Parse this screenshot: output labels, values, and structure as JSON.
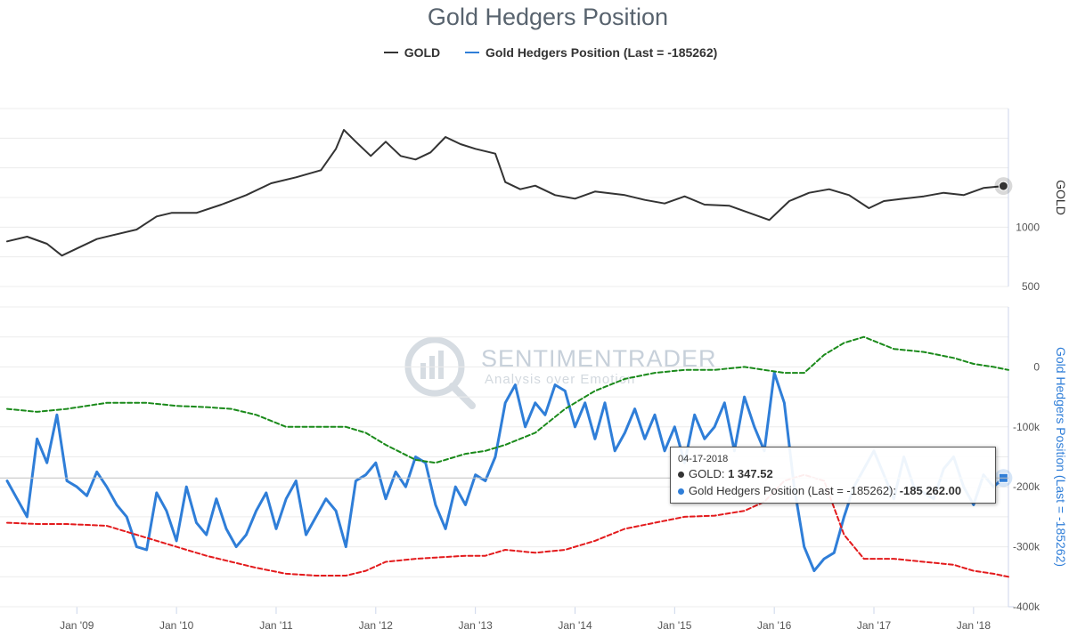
{
  "chart_data": {
    "type": "line",
    "title": "Gold Hedgers Position",
    "legend": {
      "placement": "top-center",
      "items": [
        "GOLD",
        "Gold Hedgers Position (Last = -185262)"
      ]
    },
    "x_ticks": [
      "Jan '09",
      "Jan '10",
      "Jan '11",
      "Jan '12",
      "Jan '13",
      "Jan '14",
      "Jan '15",
      "Jan '16",
      "Jan '17",
      "Jan '18"
    ],
    "x_range": [
      2008.3,
      2018.35
    ],
    "panels": [
      {
        "name": "gold",
        "ylabel": "GOLD",
        "ylim": [
          500,
          2000
        ],
        "y_ticks": [
          {
            "value": 500,
            "label": "500"
          },
          {
            "value": 1000,
            "label": "1000"
          }
        ],
        "grid": true,
        "series": [
          {
            "name": "GOLD",
            "color": "#333333",
            "x": [
              2008.3,
              2008.5,
              2008.7,
              2008.85,
              2009.0,
              2009.2,
              2009.4,
              2009.6,
              2009.8,
              2009.95,
              2010.2,
              2010.45,
              2010.7,
              2010.95,
              2011.2,
              2011.45,
              2011.6,
              2011.68,
              2011.8,
              2011.95,
              2012.1,
              2012.25,
              2012.4,
              2012.55,
              2012.7,
              2012.85,
              2013.0,
              2013.2,
              2013.3,
              2013.45,
              2013.6,
              2013.8,
              2014.0,
              2014.2,
              2014.5,
              2014.7,
              2014.9,
              2015.1,
              2015.3,
              2015.55,
              2015.75,
              2015.95,
              2016.15,
              2016.35,
              2016.55,
              2016.75,
              2016.95,
              2017.1,
              2017.3,
              2017.5,
              2017.7,
              2017.9,
              2018.1,
              2018.3
            ],
            "values": [
              880,
              920,
              860,
              760,
              820,
              900,
              940,
              980,
              1090,
              1120,
              1120,
              1190,
              1270,
              1370,
              1420,
              1480,
              1660,
              1820,
              1720,
              1600,
              1720,
              1600,
              1570,
              1630,
              1760,
              1700,
              1660,
              1620,
              1380,
              1320,
              1350,
              1270,
              1240,
              1300,
              1270,
              1230,
              1200,
              1260,
              1190,
              1180,
              1120,
              1060,
              1220,
              1290,
              1320,
              1270,
              1160,
              1220,
              1240,
              1260,
              1290,
              1270,
              1330,
              1347
            ]
          }
        ]
      },
      {
        "name": "hedgers",
        "ylabel": "Gold Hedgers Position (Last = -185262)",
        "ylim": [
          -400000,
          100000
        ],
        "y_ticks": [
          {
            "value": -400000,
            "label": "-400k"
          },
          {
            "value": -300000,
            "label": "-300k"
          },
          {
            "value": -200000,
            "label": "-200k"
          },
          {
            "value": -100000,
            "label": "-100k"
          },
          {
            "value": 0,
            "label": "0"
          }
        ],
        "grid": true,
        "series": [
          {
            "name": "Gold Hedgers Position (Last = -185262)",
            "color": "#2f7ed8",
            "x": [
              2008.3,
              2008.4,
              2008.5,
              2008.6,
              2008.7,
              2008.8,
              2008.9,
              2009.0,
              2009.1,
              2009.2,
              2009.3,
              2009.4,
              2009.5,
              2009.6,
              2009.7,
              2009.8,
              2009.9,
              2010.0,
              2010.1,
              2010.2,
              2010.3,
              2010.4,
              2010.5,
              2010.6,
              2010.7,
              2010.8,
              2010.9,
              2011.0,
              2011.1,
              2011.2,
              2011.3,
              2011.4,
              2011.5,
              2011.6,
              2011.7,
              2011.8,
              2011.9,
              2012.0,
              2012.1,
              2012.2,
              2012.3,
              2012.4,
              2012.5,
              2012.6,
              2012.7,
              2012.8,
              2012.9,
              2013.0,
              2013.1,
              2013.2,
              2013.3,
              2013.4,
              2013.5,
              2013.6,
              2013.7,
              2013.8,
              2013.9,
              2014.0,
              2014.1,
              2014.2,
              2014.3,
              2014.4,
              2014.5,
              2014.6,
              2014.7,
              2014.8,
              2014.9,
              2015.0,
              2015.1,
              2015.2,
              2015.3,
              2015.4,
              2015.5,
              2015.6,
              2015.7,
              2015.8,
              2015.9,
              2016.0,
              2016.1,
              2016.2,
              2016.3,
              2016.4,
              2016.5,
              2016.6,
              2016.7,
              2016.8,
              2016.9,
              2017.0,
              2017.1,
              2017.2,
              2017.3,
              2017.4,
              2017.5,
              2017.6,
              2017.7,
              2017.8,
              2017.9,
              2018.0,
              2018.1,
              2018.2,
              2018.3
            ],
            "values": [
              -190000,
              -220000,
              -250000,
              -120000,
              -160000,
              -80000,
              -190000,
              -200000,
              -215000,
              -175000,
              -200000,
              -230000,
              -250000,
              -300000,
              -305000,
              -210000,
              -240000,
              -290000,
              -200000,
              -260000,
              -280000,
              -220000,
              -270000,
              -300000,
              -280000,
              -240000,
              -210000,
              -270000,
              -220000,
              -190000,
              -280000,
              -250000,
              -220000,
              -240000,
              -300000,
              -190000,
              -180000,
              -160000,
              -220000,
              -175000,
              -200000,
              -150000,
              -160000,
              -230000,
              -270000,
              -200000,
              -230000,
              -180000,
              -190000,
              -150000,
              -60000,
              -30000,
              -100000,
              -60000,
              -80000,
              -30000,
              -40000,
              -100000,
              -60000,
              -120000,
              -60000,
              -140000,
              -110000,
              -70000,
              -120000,
              -80000,
              -140000,
              -100000,
              -160000,
              -80000,
              -120000,
              -100000,
              -60000,
              -140000,
              -50000,
              -100000,
              -140000,
              -10000,
              -60000,
              -200000,
              -300000,
              -340000,
              -320000,
              -310000,
              -250000,
              -200000,
              -170000,
              -140000,
              -180000,
              -220000,
              -150000,
              -200000,
              -210000,
              -220000,
              -170000,
              -150000,
              -200000,
              -230000,
              -180000,
              -200000,
              -185262
            ]
          },
          {
            "name": "upper band",
            "color": "#1a8a1a",
            "x": [
              2008.3,
              2008.6,
              2008.9,
              2009.3,
              2009.7,
              2010.0,
              2010.3,
              2010.55,
              2010.8,
              2011.1,
              2011.4,
              2011.7,
              2011.9,
              2012.1,
              2012.4,
              2012.6,
              2012.9,
              2013.1,
              2013.3,
              2013.6,
              2013.9,
              2014.2,
              2014.5,
              2014.8,
              2015.1,
              2015.4,
              2015.7,
              2015.9,
              2016.1,
              2016.3,
              2016.5,
              2016.7,
              2016.9,
              2017.2,
              2017.5,
              2017.8,
              2018.0,
              2018.2,
              2018.35
            ],
            "values": [
              -70000,
              -75000,
              -70000,
              -60000,
              -60000,
              -65000,
              -67000,
              -70000,
              -80000,
              -100000,
              -100000,
              -100000,
              -110000,
              -130000,
              -155000,
              -160000,
              -145000,
              -140000,
              -130000,
              -110000,
              -70000,
              -40000,
              -20000,
              -10000,
              -5000,
              -5000,
              0,
              -5000,
              -10000,
              -10000,
              20000,
              40000,
              50000,
              30000,
              25000,
              15000,
              5000,
              0,
              -5000
            ]
          },
          {
            "name": "lower band",
            "color": "#e31a1c",
            "x": [
              2008.3,
              2008.6,
              2008.9,
              2009.3,
              2009.7,
              2010.0,
              2010.3,
              2010.55,
              2010.8,
              2011.1,
              2011.4,
              2011.7,
              2011.9,
              2012.1,
              2012.4,
              2012.6,
              2012.9,
              2013.1,
              2013.3,
              2013.6,
              2013.9,
              2014.2,
              2014.5,
              2014.8,
              2015.1,
              2015.4,
              2015.7,
              2015.9,
              2016.1,
              2016.3,
              2016.5,
              2016.7,
              2016.9,
              2017.2,
              2017.5,
              2017.8,
              2018.0,
              2018.2,
              2018.35
            ],
            "values": [
              -260000,
              -262000,
              -262000,
              -265000,
              -285000,
              -300000,
              -315000,
              -325000,
              -335000,
              -345000,
              -348000,
              -348000,
              -340000,
              -325000,
              -320000,
              -318000,
              -315000,
              -315000,
              -305000,
              -310000,
              -305000,
              -290000,
              -270000,
              -260000,
              -250000,
              -248000,
              -240000,
              -225000,
              -190000,
              -180000,
              -190000,
              -280000,
              -320000,
              -320000,
              -325000,
              -330000,
              -340000,
              -345000,
              -350000
            ]
          }
        ]
      }
    ],
    "tooltip": {
      "date": "04-17-2018",
      "gold_label": "GOLD:",
      "gold_value": "1 347.52",
      "hedgers_label": "Gold Hedgers Position (Last = -185262):",
      "hedgers_value": "-185 262.00"
    }
  },
  "watermark": {
    "brand": "SENTIMENTRADER",
    "tagline": "Analysis over Emotion"
  }
}
